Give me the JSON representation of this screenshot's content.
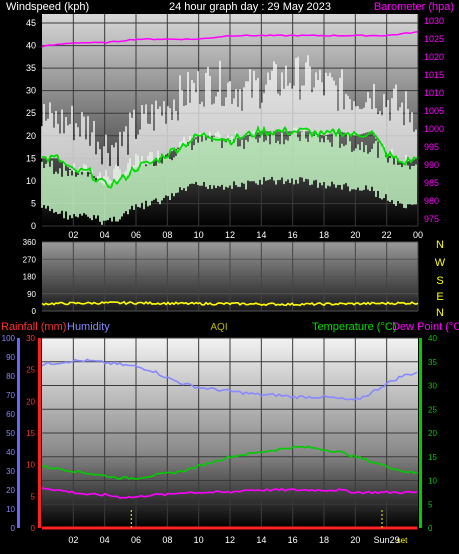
{
  "header": {
    "left_label": "Windspeed (kph)",
    "center_label": "24 hour graph day : 29 May 2023",
    "right_label": "Barometer (hpa)"
  },
  "wind_panel": {
    "chart_data": {
      "type": "line",
      "x_ticks": [
        "02",
        "04",
        "06",
        "08",
        "10",
        "12",
        "14",
        "16",
        "18",
        "20",
        "22",
        "00"
      ],
      "y_left_ticks": [
        "0",
        "5",
        "10",
        "15",
        "20",
        "25",
        "30",
        "35",
        "40",
        "45"
      ],
      "y_left_range": [
        0,
        47
      ],
      "y_right_ticks": [
        "975",
        "980",
        "985",
        "990",
        "995",
        "1000",
        "1005",
        "1010",
        "1015",
        "1020",
        "1025",
        "1030"
      ],
      "y_right_range": [
        973,
        1032
      ],
      "series": [
        {
          "name": "Windspeed (kph)",
          "color": "#ffffff",
          "style": "gust",
          "x": [
            0,
            1,
            2,
            3,
            4,
            5,
            6,
            7,
            8,
            9,
            10,
            11,
            12,
            13,
            14,
            15,
            16,
            17,
            18,
            19,
            20,
            21,
            22,
            23,
            24
          ],
          "values": [
            22,
            21,
            21,
            20,
            16,
            16,
            20,
            22,
            25,
            27,
            29,
            30,
            29,
            28,
            29,
            30,
            31,
            31,
            29,
            28,
            27,
            28,
            26,
            24,
            23
          ]
        },
        {
          "name": "",
          "color": "#00dd00",
          "style": "line",
          "x": [
            0,
            1,
            2,
            3,
            4,
            5,
            6,
            7,
            8,
            9,
            10,
            11,
            12,
            13,
            14,
            15,
            16,
            17,
            18,
            19,
            20,
            21,
            22,
            23,
            24
          ],
          "values": [
            15,
            15,
            12,
            12,
            9,
            10,
            13,
            14,
            16,
            18,
            20,
            20,
            19,
            20,
            21,
            21,
            21,
            21,
            20,
            21,
            20,
            21,
            16,
            14,
            15
          ]
        },
        {
          "name": "",
          "color": "#ccffcc",
          "style": "band",
          "x": [
            0,
            1,
            2,
            3,
            4,
            5,
            6,
            7,
            8,
            9,
            10,
            11,
            12,
            13,
            14,
            15,
            16,
            17,
            18,
            19,
            20,
            21,
            22,
            23,
            24
          ],
          "values": [
            9,
            8,
            7,
            7,
            6,
            7,
            9,
            10,
            11,
            13,
            14,
            14,
            14,
            14,
            15,
            15,
            15,
            15,
            14,
            14,
            13,
            13,
            11,
            9,
            9
          ]
        },
        {
          "name": "Barometer (hpa)",
          "color": "#ff00ff",
          "style": "line",
          "axis": "right",
          "x": [
            0,
            2,
            4,
            6,
            8,
            10,
            12,
            14,
            16,
            18,
            20,
            22,
            24
          ],
          "values": [
            1023,
            1024,
            1024,
            1025,
            1025,
            1025,
            1026,
            1026,
            1026,
            1026,
            1026,
            1026,
            1027
          ]
        }
      ]
    }
  },
  "dir_panel": {
    "chart_data": {
      "type": "line",
      "y_ticks": [
        "0",
        "90",
        "180",
        "270",
        "360"
      ],
      "y_range": [
        0,
        360
      ],
      "compass": [
        "N",
        "W",
        "S",
        "E",
        "N"
      ],
      "series": [
        {
          "name": "",
          "color": "#ffff00",
          "x": [
            0,
            2,
            4,
            6,
            8,
            10,
            12,
            14,
            16,
            18,
            20,
            22,
            24
          ],
          "values": [
            38,
            40,
            42,
            42,
            40,
            38,
            38,
            36,
            35,
            36,
            38,
            40,
            42
          ]
        }
      ]
    }
  },
  "bottom_header": {
    "rain_label": "Rainfall (mm)",
    "humidity_label": "Humidity",
    "aqi_label": "AQI",
    "temp_label": "Temperature (°C)",
    "dew_label": "Dew Point (°C)"
  },
  "bottom_panel": {
    "chart_data": {
      "type": "line",
      "x_ticks": [
        "02",
        "04",
        "06",
        "08",
        "10",
        "12",
        "14",
        "16",
        "18",
        "20",
        "Sun29"
      ],
      "x_tick_overlay": "set",
      "y_humidity_ticks": [
        "0",
        "10",
        "20",
        "30",
        "40",
        "50",
        "60",
        "70",
        "80",
        "90",
        "100"
      ],
      "y_humidity_range": [
        0,
        100
      ],
      "y_rain_ticks": [
        "0",
        "5",
        "10",
        "15",
        "20",
        "25",
        "30"
      ],
      "y_rain_range": [
        0,
        30
      ],
      "y_temp_ticks": [
        "0",
        "5",
        "10",
        "15",
        "20",
        "25",
        "30",
        "35",
        "40"
      ],
      "y_temp_range": [
        0,
        40
      ],
      "series": [
        {
          "name": "Humidity",
          "color": "#8888ff",
          "axis": "humidity",
          "x": [
            0,
            1,
            2,
            3,
            4,
            5,
            6,
            7,
            8,
            9,
            10,
            11,
            12,
            13,
            14,
            15,
            16,
            17,
            18,
            19,
            20,
            21,
            22,
            23,
            24
          ],
          "values": [
            86,
            87,
            88,
            88,
            87,
            86,
            85,
            83,
            79,
            76,
            74,
            73,
            72,
            71,
            70,
            70,
            69,
            69,
            69,
            68,
            67,
            71,
            76,
            80,
            82
          ]
        },
        {
          "name": "Temperature (°C)",
          "color": "#00cc00",
          "axis": "temp",
          "x": [
            0,
            1,
            2,
            3,
            4,
            5,
            6,
            7,
            8,
            9,
            10,
            11,
            12,
            13,
            14,
            15,
            16,
            17,
            18,
            19,
            20,
            21,
            22,
            23,
            24
          ],
          "values": [
            13,
            12.5,
            12,
            11.5,
            11,
            10.5,
            10.5,
            11,
            11.5,
            12,
            13,
            14,
            15,
            15.5,
            16,
            16.5,
            17,
            17,
            16.5,
            16,
            15,
            14,
            13,
            12,
            11.5
          ]
        },
        {
          "name": "Dew Point (°C)",
          "color": "#ff00ff",
          "axis": "temp",
          "x": [
            0,
            1,
            2,
            3,
            4,
            5,
            6,
            7,
            8,
            9,
            10,
            11,
            12,
            13,
            14,
            15,
            16,
            17,
            18,
            19,
            20,
            21,
            22,
            23,
            24
          ],
          "values": [
            8.5,
            8,
            7.5,
            7,
            7,
            6.5,
            6.5,
            7,
            7,
            7.5,
            7.5,
            7.5,
            7.5,
            8,
            8,
            8,
            8,
            8,
            8,
            8,
            7.5,
            7.5,
            7.5,
            7.5,
            7.5
          ]
        },
        {
          "name": "Rainfall (mm)",
          "color": "#ff2222",
          "axis": "rain",
          "x": [
            0,
            24
          ],
          "values": [
            0,
            0
          ]
        },
        {
          "name": "AQI",
          "color": "#ffff00",
          "style": "marker",
          "x": [
            5.7,
            21.7
          ],
          "values": [
            0,
            0
          ]
        }
      ]
    }
  }
}
